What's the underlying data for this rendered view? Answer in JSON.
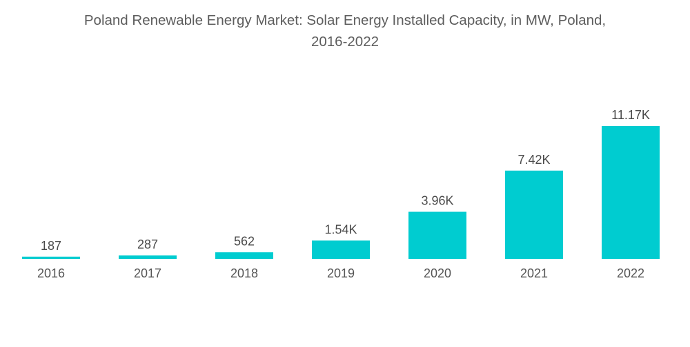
{
  "chart_data": {
    "type": "bar",
    "title": "Poland Renewable Energy Market: Solar Energy Installed Capacity, in MW, Poland, 2016-2022",
    "title_lines": [
      "Poland Renewable Energy Market: Solar Energy Installed Capacity, in MW, Poland,",
      "2016-2022"
    ],
    "categories": [
      "2016",
      "2017",
      "2018",
      "2019",
      "2020",
      "2021",
      "2022"
    ],
    "values": [
      187,
      287,
      562,
      1540,
      3960,
      7420,
      11170
    ],
    "data_labels": [
      "187",
      "287",
      "562",
      "1.54K",
      "3.96K",
      "7.42K",
      "11.17K"
    ],
    "xlabel": "",
    "ylabel": "",
    "ylim": [
      0,
      11170
    ],
    "grid": false,
    "legend": "none",
    "bar_color": "#00CCD0"
  }
}
